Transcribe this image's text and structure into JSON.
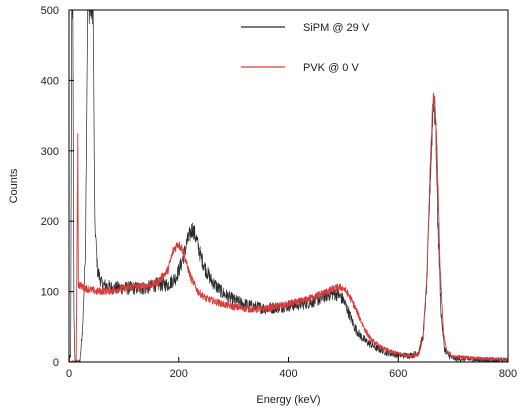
{
  "chart_data": {
    "type": "line",
    "xlabel": "Energy (keV)",
    "ylabel": "Counts",
    "xlim": [
      0,
      800
    ],
    "ylim": [
      0,
      500
    ],
    "xticks": [
      0,
      200,
      400,
      600,
      800
    ],
    "yticks": [
      0,
      100,
      200,
      300,
      400,
      500
    ],
    "legend_position": "top-right",
    "series": [
      {
        "name": "SiPM @ 29 V",
        "color": "#2b2b2b",
        "noise": 9,
        "points": [
          [
            0,
            0
          ],
          [
            3,
            10
          ],
          [
            5,
            500
          ],
          [
            7,
            500
          ],
          [
            9,
            60
          ],
          [
            11,
            0
          ],
          [
            15,
            0
          ],
          [
            18,
            0
          ],
          [
            20,
            0
          ],
          [
            25,
            50
          ],
          [
            30,
            160
          ],
          [
            34,
            500
          ],
          [
            44,
            500
          ],
          [
            47,
            200
          ],
          [
            52,
            130
          ],
          [
            60,
            110
          ],
          [
            80,
            105
          ],
          [
            100,
            105
          ],
          [
            120,
            105
          ],
          [
            140,
            105
          ],
          [
            160,
            110
          ],
          [
            180,
            110
          ],
          [
            195,
            120
          ],
          [
            205,
            140
          ],
          [
            215,
            170
          ],
          [
            225,
            190
          ],
          [
            232,
            175
          ],
          [
            240,
            150
          ],
          [
            250,
            130
          ],
          [
            260,
            115
          ],
          [
            280,
            98
          ],
          [
            300,
            88
          ],
          [
            320,
            82
          ],
          [
            340,
            78
          ],
          [
            360,
            76
          ],
          [
            380,
            78
          ],
          [
            400,
            80
          ],
          [
            420,
            82
          ],
          [
            440,
            85
          ],
          [
            460,
            90
          ],
          [
            470,
            95
          ],
          [
            480,
            97
          ],
          [
            490,
            96
          ],
          [
            500,
            88
          ],
          [
            510,
            70
          ],
          [
            520,
            50
          ],
          [
            530,
            38
          ],
          [
            540,
            30
          ],
          [
            560,
            20
          ],
          [
            580,
            13
          ],
          [
            600,
            10
          ],
          [
            620,
            9
          ],
          [
            635,
            12
          ],
          [
            645,
            35
          ],
          [
            652,
            110
          ],
          [
            658,
            250
          ],
          [
            664,
            370
          ],
          [
            668,
            340
          ],
          [
            672,
            200
          ],
          [
            678,
            70
          ],
          [
            684,
            20
          ],
          [
            690,
            10
          ],
          [
            700,
            5
          ],
          [
            750,
            3
          ],
          [
            800,
            2
          ]
        ]
      },
      {
        "name": "PVK @ 0 V",
        "color": "#d93b3b",
        "noise": 5,
        "points": [
          [
            0,
            0
          ],
          [
            10,
            0
          ],
          [
            13,
            0
          ],
          [
            14,
            100
          ],
          [
            16,
            320
          ],
          [
            17,
            110
          ],
          [
            22,
            108
          ],
          [
            30,
            105
          ],
          [
            50,
            100
          ],
          [
            80,
            102
          ],
          [
            100,
            105
          ],
          [
            120,
            107
          ],
          [
            140,
            108
          ],
          [
            160,
            112
          ],
          [
            180,
            130
          ],
          [
            190,
            158
          ],
          [
            198,
            168
          ],
          [
            206,
            162
          ],
          [
            214,
            140
          ],
          [
            222,
            120
          ],
          [
            235,
            100
          ],
          [
            250,
            90
          ],
          [
            270,
            85
          ],
          [
            290,
            80
          ],
          [
            310,
            77
          ],
          [
            330,
            75
          ],
          [
            350,
            75
          ],
          [
            370,
            77
          ],
          [
            390,
            80
          ],
          [
            410,
            84
          ],
          [
            430,
            88
          ],
          [
            450,
            94
          ],
          [
            470,
            100
          ],
          [
            490,
            106
          ],
          [
            500,
            105
          ],
          [
            510,
            95
          ],
          [
            520,
            80
          ],
          [
            530,
            62
          ],
          [
            540,
            45
          ],
          [
            550,
            32
          ],
          [
            570,
            20
          ],
          [
            590,
            14
          ],
          [
            610,
            10
          ],
          [
            625,
            9
          ],
          [
            638,
            12
          ],
          [
            646,
            40
          ],
          [
            652,
            120
          ],
          [
            658,
            270
          ],
          [
            663,
            375
          ],
          [
            667,
            372
          ],
          [
            671,
            290
          ],
          [
            676,
            140
          ],
          [
            682,
            45
          ],
          [
            688,
            15
          ],
          [
            700,
            8
          ],
          [
            750,
            5
          ],
          [
            800,
            4
          ]
        ]
      }
    ]
  }
}
